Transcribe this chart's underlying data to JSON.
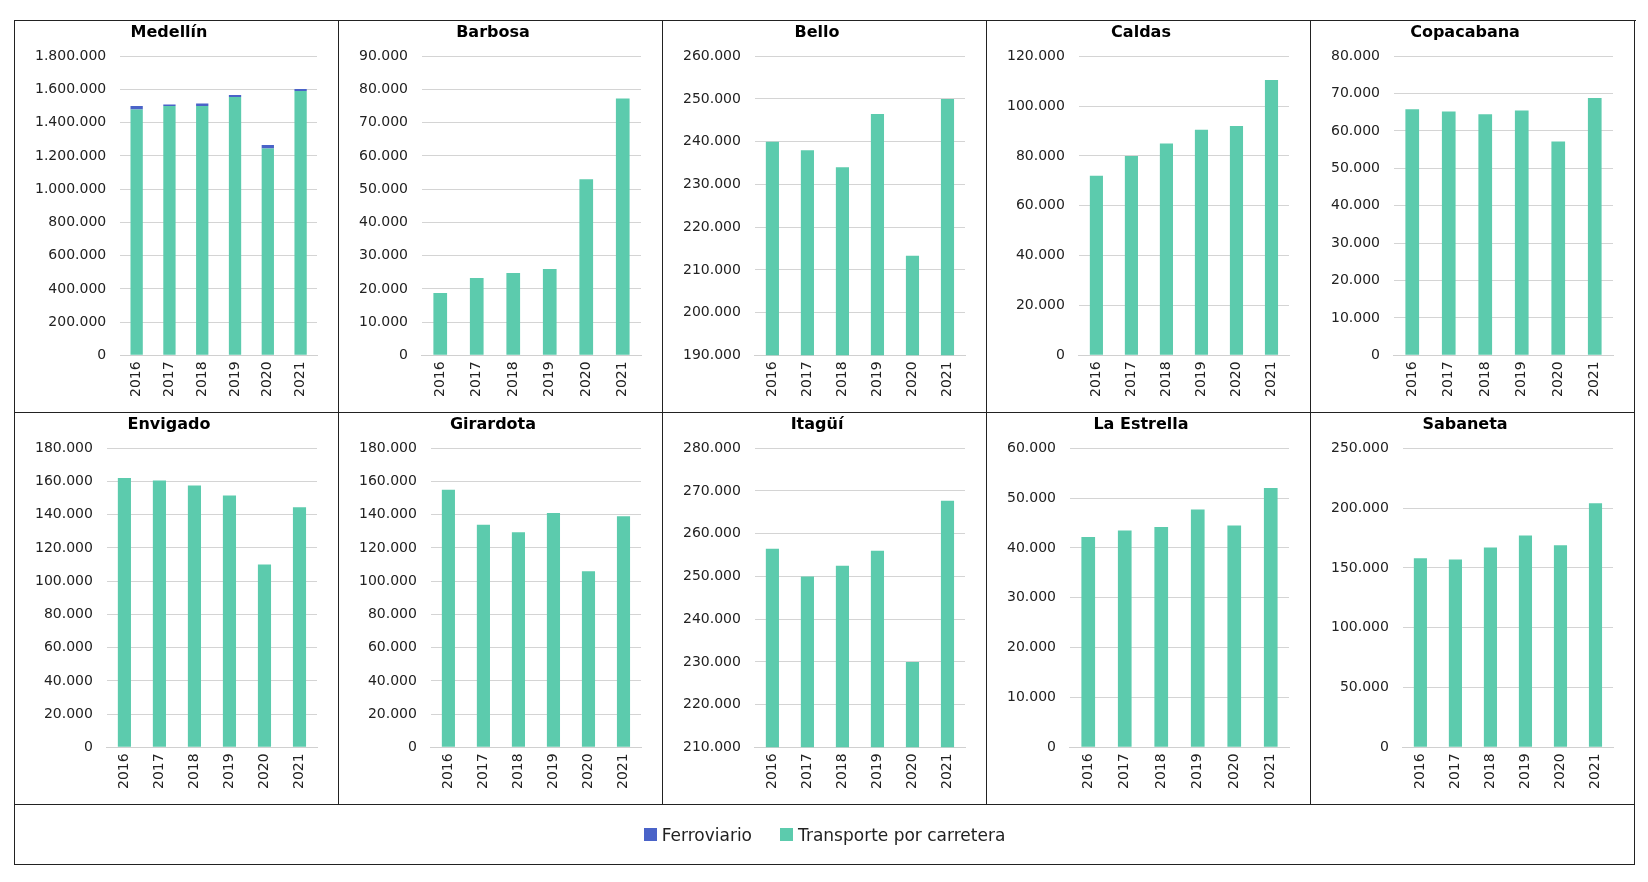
{
  "chart_data": [
    {
      "type": "bar",
      "title": "Medellín",
      "categories": [
        "2016",
        "2017",
        "2018",
        "2019",
        "2020",
        "2021"
      ],
      "stacked": true,
      "grid": "y",
      "legend": "bottom",
      "ylim": [
        0,
        1800000
      ],
      "yticks": [
        {
          "value": 0,
          "label": "0"
        },
        {
          "value": 200000,
          "label": "200.000"
        },
        {
          "value": 400000,
          "label": "400.000"
        },
        {
          "value": 600000,
          "label": "600.000"
        },
        {
          "value": 800000,
          "label": "800.000"
        },
        {
          "value": 1000000,
          "label": "1.000.000"
        },
        {
          "value": 1200000,
          "label": "1.200.000"
        },
        {
          "value": 1400000,
          "label": "1.400.000"
        },
        {
          "value": 1600000,
          "label": "1.600.000"
        },
        {
          "value": 1800000,
          "label": "1.800.000"
        }
      ],
      "series": [
        {
          "name": "Transporte por carretera",
          "color": "#5ccbad",
          "values": [
            1480000,
            1500000,
            1500000,
            1555000,
            1245000,
            1590000
          ]
        },
        {
          "name": "Ferroviario",
          "color": "#4a63c8",
          "values": [
            20000,
            10000,
            15000,
            12000,
            20000,
            12000
          ]
        }
      ]
    },
    {
      "type": "bar",
      "title": "Barbosa",
      "categories": [
        "2016",
        "2017",
        "2018",
        "2019",
        "2020",
        "2021"
      ],
      "grid": "y",
      "ylim": [
        0,
        90000
      ],
      "yticks": [
        {
          "value": 0,
          "label": "0"
        },
        {
          "value": 10000,
          "label": "10.000"
        },
        {
          "value": 20000,
          "label": "20.000"
        },
        {
          "value": 30000,
          "label": "30.000"
        },
        {
          "value": 40000,
          "label": "40.000"
        },
        {
          "value": 50000,
          "label": "50.000"
        },
        {
          "value": 60000,
          "label": "60.000"
        },
        {
          "value": 70000,
          "label": "70.000"
        },
        {
          "value": 80000,
          "label": "80.000"
        },
        {
          "value": 90000,
          "label": "90.000"
        }
      ],
      "series": [
        {
          "color": "#5ccbad",
          "values": [
            18800,
            23300,
            24800,
            26000,
            53000,
            77300
          ]
        }
      ]
    },
    {
      "type": "bar",
      "title": "Bello",
      "categories": [
        "2016",
        "2017",
        "2018",
        "2019",
        "2020",
        "2021"
      ],
      "grid": "y",
      "ylim": [
        190000,
        260000
      ],
      "yticks": [
        {
          "value": 190000,
          "label": "190.000"
        },
        {
          "value": 200000,
          "label": "200.000"
        },
        {
          "value": 210000,
          "label": "210.000"
        },
        {
          "value": 220000,
          "label": "220.000"
        },
        {
          "value": 230000,
          "label": "230.000"
        },
        {
          "value": 240000,
          "label": "240.000"
        },
        {
          "value": 250000,
          "label": "250.000"
        },
        {
          "value": 260000,
          "label": "260.000"
        }
      ],
      "series": [
        {
          "color": "#5ccbad",
          "values": [
            240000,
            238000,
            234000,
            246500,
            213300,
            250000
          ]
        }
      ]
    },
    {
      "type": "bar",
      "title": "Caldas",
      "categories": [
        "2016",
        "2017",
        "2018",
        "2019",
        "2020",
        "2021"
      ],
      "grid": "y",
      "ylim": [
        0,
        120000
      ],
      "yticks": [
        {
          "value": 0,
          "label": "0"
        },
        {
          "value": 20000,
          "label": "20.000"
        },
        {
          "value": 40000,
          "label": "40.000"
        },
        {
          "value": 60000,
          "label": "60.000"
        },
        {
          "value": 80000,
          "label": "80.000"
        },
        {
          "value": 100000,
          "label": "100.000"
        },
        {
          "value": 120000,
          "label": "120.000"
        }
      ],
      "series": [
        {
          "color": "#5ccbad",
          "values": [
            72000,
            80000,
            85000,
            90500,
            92000,
            110500
          ]
        }
      ]
    },
    {
      "type": "bar",
      "title": "Copacabana",
      "categories": [
        "2016",
        "2017",
        "2018",
        "2019",
        "2020",
        "2021"
      ],
      "grid": "y",
      "ylim": [
        0,
        80000
      ],
      "yticks": [
        {
          "value": 0,
          "label": "0"
        },
        {
          "value": 10000,
          "label": "10.000"
        },
        {
          "value": 20000,
          "label": "20.000"
        },
        {
          "value": 30000,
          "label": "30.000"
        },
        {
          "value": 40000,
          "label": "40.000"
        },
        {
          "value": 50000,
          "label": "50.000"
        },
        {
          "value": 60000,
          "label": "60.000"
        },
        {
          "value": 70000,
          "label": "70.000"
        },
        {
          "value": 80000,
          "label": "80.000"
        }
      ],
      "series": [
        {
          "color": "#5ccbad",
          "values": [
            65800,
            65200,
            64500,
            65500,
            57200,
            68800
          ]
        }
      ]
    },
    {
      "type": "bar",
      "title": "Envigado",
      "categories": [
        "2016",
        "2017",
        "2018",
        "2019",
        "2020",
        "2021"
      ],
      "grid": "y",
      "ylim": [
        0,
        180000
      ],
      "yticks": [
        {
          "value": 0,
          "label": "0"
        },
        {
          "value": 20000,
          "label": "20.000"
        },
        {
          "value": 40000,
          "label": "40.000"
        },
        {
          "value": 60000,
          "label": "60.000"
        },
        {
          "value": 80000,
          "label": "80.000"
        },
        {
          "value": 100000,
          "label": "100.000"
        },
        {
          "value": 120000,
          "label": "120.000"
        },
        {
          "value": 140000,
          "label": "140.000"
        },
        {
          "value": 160000,
          "label": "160.000"
        },
        {
          "value": 180000,
          "label": "180.000"
        }
      ],
      "series": [
        {
          "color": "#5ccbad",
          "values": [
            162000,
            160500,
            157500,
            151500,
            110000,
            144500
          ]
        }
      ]
    },
    {
      "type": "bar",
      "title": "Girardota",
      "categories": [
        "2016",
        "2017",
        "2018",
        "2019",
        "2020",
        "2021"
      ],
      "grid": "y",
      "ylim": [
        0,
        180000
      ],
      "yticks": [
        {
          "value": 0,
          "label": "0"
        },
        {
          "value": 20000,
          "label": "20.000"
        },
        {
          "value": 40000,
          "label": "40.000"
        },
        {
          "value": 60000,
          "label": "60.000"
        },
        {
          "value": 80000,
          "label": "80.000"
        },
        {
          "value": 100000,
          "label": "100.000"
        },
        {
          "value": 120000,
          "label": "120.000"
        },
        {
          "value": 140000,
          "label": "140.000"
        },
        {
          "value": 160000,
          "label": "160.000"
        },
        {
          "value": 180000,
          "label": "180.000"
        }
      ],
      "series": [
        {
          "color": "#5ccbad",
          "values": [
            155000,
            134000,
            129500,
            141000,
            106000,
            139000
          ]
        }
      ]
    },
    {
      "type": "bar",
      "title": "Itagüí",
      "categories": [
        "2016",
        "2017",
        "2018",
        "2019",
        "2020",
        "2021"
      ],
      "grid": "y",
      "ylim": [
        210000,
        280000
      ],
      "yticks": [
        {
          "value": 210000,
          "label": "210.000"
        },
        {
          "value": 220000,
          "label": "220.000"
        },
        {
          "value": 230000,
          "label": "230.000"
        },
        {
          "value": 240000,
          "label": "240.000"
        },
        {
          "value": 250000,
          "label": "250.000"
        },
        {
          "value": 260000,
          "label": "260.000"
        },
        {
          "value": 270000,
          "label": "270.000"
        },
        {
          "value": 280000,
          "label": "280.000"
        }
      ],
      "series": [
        {
          "color": "#5ccbad",
          "values": [
            256500,
            250000,
            252500,
            256000,
            230000,
            267700
          ]
        }
      ]
    },
    {
      "type": "bar",
      "title": "La Estrella",
      "categories": [
        "2016",
        "2017",
        "2018",
        "2019",
        "2020",
        "2021"
      ],
      "grid": "y",
      "ylim": [
        0,
        60000
      ],
      "yticks": [
        {
          "value": 0,
          "label": "0"
        },
        {
          "value": 10000,
          "label": "10.000"
        },
        {
          "value": 20000,
          "label": "20.000"
        },
        {
          "value": 30000,
          "label": "30.000"
        },
        {
          "value": 40000,
          "label": "40.000"
        },
        {
          "value": 50000,
          "label": "50.000"
        },
        {
          "value": 60000,
          "label": "60.000"
        }
      ],
      "series": [
        {
          "color": "#5ccbad",
          "values": [
            42200,
            43500,
            44200,
            47700,
            44500,
            52000
          ]
        }
      ]
    },
    {
      "type": "bar",
      "title": "Sabaneta",
      "categories": [
        "2016",
        "2017",
        "2018",
        "2019",
        "2020",
        "2021"
      ],
      "grid": "y",
      "ylim": [
        0,
        250000
      ],
      "yticks": [
        {
          "value": 0,
          "label": "0"
        },
        {
          "value": 50000,
          "label": "50.000"
        },
        {
          "value": 100000,
          "label": "100.000"
        },
        {
          "value": 150000,
          "label": "150.000"
        },
        {
          "value": 200000,
          "label": "200.000"
        },
        {
          "value": 250000,
          "label": "250.000"
        }
      ],
      "series": [
        {
          "color": "#5ccbad",
          "values": [
            158000,
            157000,
            167000,
            177000,
            169000,
            204000
          ]
        }
      ]
    }
  ]
}
